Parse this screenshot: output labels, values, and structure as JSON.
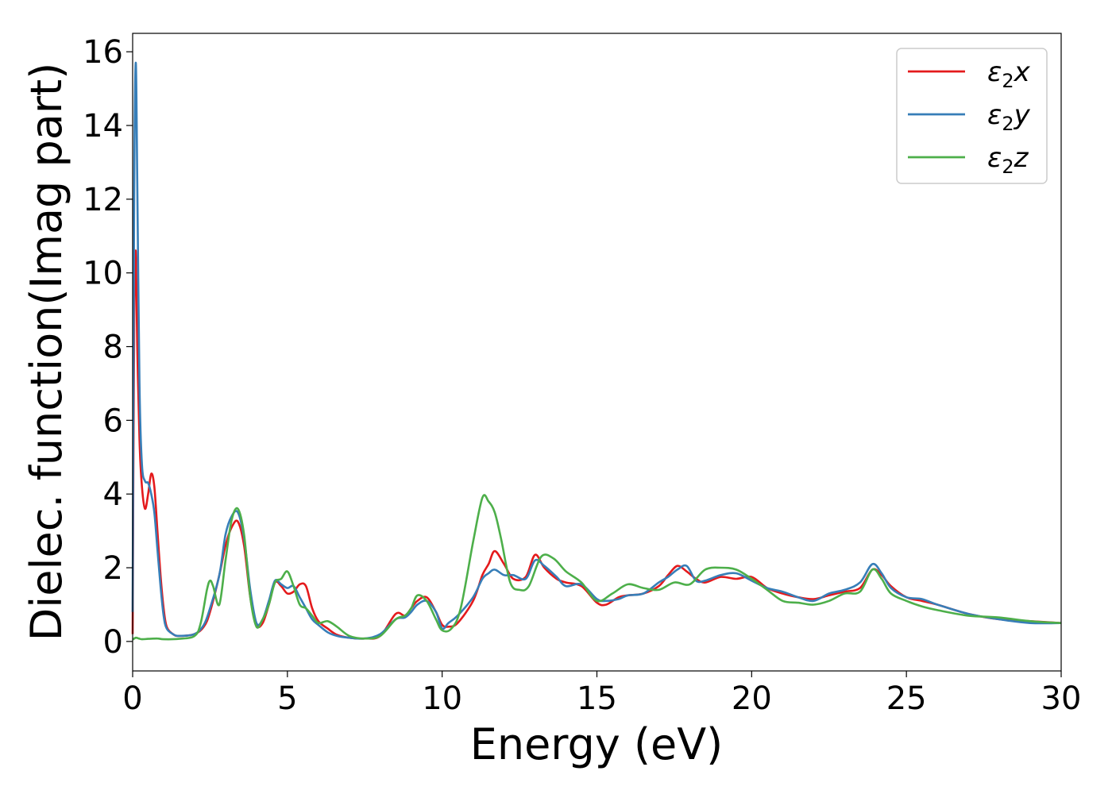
{
  "chart_data": {
    "type": "line",
    "title": "",
    "xlabel": "Energy (eV)",
    "ylabel": "Dielec. function(Imag part)",
    "xlim": [
      0,
      30
    ],
    "ylim": [
      -0.8,
      16.5
    ],
    "xticks": [
      0,
      5,
      10,
      15,
      20,
      25,
      30
    ],
    "yticks": [
      0,
      2,
      4,
      6,
      8,
      10,
      12,
      14,
      16
    ],
    "grid": false,
    "legend_position": "top-right",
    "series": [
      {
        "name": "ε2x",
        "legend_base": "ε",
        "legend_sub": "2",
        "legend_var": "x",
        "color": "#e41a1c",
        "x": [
          0,
          0.05,
          0.1,
          0.15,
          0.22,
          0.3,
          0.4,
          0.5,
          0.6,
          0.7,
          0.8,
          0.9,
          1.0,
          1.1,
          1.3,
          1.5,
          2.0,
          2.3,
          2.5,
          2.8,
          3.0,
          3.2,
          3.4,
          3.6,
          3.8,
          4.0,
          4.2,
          4.4,
          4.6,
          4.8,
          5.0,
          5.2,
          5.4,
          5.6,
          5.8,
          6.0,
          6.3,
          6.6,
          7.0,
          7.5,
          8.0,
          8.5,
          8.8,
          9.0,
          9.2,
          9.5,
          9.8,
          10.0,
          10.2,
          10.5,
          11.0,
          11.3,
          11.5,
          11.7,
          12.0,
          12.3,
          12.7,
          13.0,
          13.3,
          13.7,
          14.0,
          14.5,
          15.0,
          15.3,
          15.7,
          16.0,
          16.5,
          17.0,
          17.3,
          17.6,
          17.9,
          18.2,
          18.5,
          19.0,
          19.5,
          20.0,
          20.5,
          21.0,
          21.5,
          22.0,
          22.5,
          23.0,
          23.5,
          23.9,
          24.2,
          24.5,
          25.0,
          25.5,
          26.0,
          27.0,
          28.0,
          29.0,
          30.0
        ],
        "y": [
          0.2,
          8.5,
          10.6,
          8.0,
          5.5,
          4.2,
          3.6,
          4.0,
          4.55,
          4.2,
          3.0,
          1.8,
          0.9,
          0.4,
          0.2,
          0.15,
          0.2,
          0.4,
          0.8,
          1.8,
          2.6,
          3.1,
          3.25,
          2.6,
          1.2,
          0.45,
          0.5,
          1.0,
          1.6,
          1.5,
          1.3,
          1.35,
          1.55,
          1.5,
          0.9,
          0.55,
          0.35,
          0.18,
          0.1,
          0.08,
          0.15,
          0.75,
          0.7,
          0.9,
          1.1,
          1.2,
          0.8,
          0.45,
          0.4,
          0.5,
          1.1,
          1.8,
          2.1,
          2.45,
          2.1,
          1.7,
          1.75,
          2.35,
          2.0,
          1.7,
          1.6,
          1.5,
          1.05,
          1.0,
          1.2,
          1.25,
          1.3,
          1.5,
          1.8,
          2.05,
          1.9,
          1.7,
          1.6,
          1.75,
          1.7,
          1.75,
          1.45,
          1.3,
          1.2,
          1.15,
          1.25,
          1.35,
          1.45,
          1.95,
          1.8,
          1.5,
          1.2,
          1.1,
          1.0,
          0.75,
          0.6,
          0.55,
          0.5
        ]
      },
      {
        "name": "ε2y",
        "legend_base": "ε",
        "legend_sub": "2",
        "legend_var": "y",
        "color": "#377eb8",
        "x": [
          0,
          0.05,
          0.1,
          0.15,
          0.22,
          0.3,
          0.4,
          0.5,
          0.6,
          0.7,
          0.8,
          0.9,
          1.0,
          1.1,
          1.3,
          1.5,
          2.0,
          2.3,
          2.5,
          2.8,
          3.0,
          3.2,
          3.4,
          3.6,
          3.8,
          4.0,
          4.2,
          4.4,
          4.6,
          4.8,
          5.0,
          5.2,
          5.4,
          5.6,
          5.8,
          6.0,
          6.3,
          6.6,
          7.0,
          7.5,
          8.0,
          8.5,
          8.8,
          9.0,
          9.2,
          9.5,
          9.8,
          10.0,
          10.2,
          10.5,
          11.0,
          11.3,
          11.5,
          11.7,
          12.0,
          12.3,
          12.7,
          13.0,
          13.3,
          13.7,
          14.0,
          14.5,
          15.0,
          15.3,
          15.7,
          16.0,
          16.5,
          17.0,
          17.3,
          17.6,
          17.9,
          18.2,
          18.5,
          19.0,
          19.5,
          20.0,
          20.5,
          21.0,
          21.5,
          22.0,
          22.5,
          23.0,
          23.5,
          23.9,
          24.2,
          24.5,
          25.0,
          25.5,
          26.0,
          27.0,
          28.0,
          29.0,
          30.0
        ],
        "y": [
          0.8,
          12.0,
          15.7,
          12.5,
          7.0,
          4.8,
          4.35,
          4.3,
          4.0,
          3.5,
          2.5,
          1.5,
          0.7,
          0.35,
          0.2,
          0.15,
          0.2,
          0.45,
          0.9,
          1.8,
          2.9,
          3.4,
          3.5,
          2.8,
          1.4,
          0.5,
          0.6,
          1.1,
          1.65,
          1.55,
          1.45,
          1.5,
          1.2,
          0.9,
          0.6,
          0.45,
          0.25,
          0.15,
          0.1,
          0.08,
          0.2,
          0.6,
          0.65,
          0.8,
          1.0,
          1.1,
          0.8,
          0.35,
          0.5,
          0.7,
          1.2,
          1.7,
          1.85,
          1.95,
          1.8,
          1.8,
          1.7,
          2.2,
          2.05,
          1.75,
          1.5,
          1.55,
          1.15,
          1.1,
          1.15,
          1.25,
          1.3,
          1.6,
          1.75,
          1.95,
          2.05,
          1.65,
          1.65,
          1.8,
          1.85,
          1.65,
          1.45,
          1.35,
          1.2,
          1.1,
          1.3,
          1.4,
          1.6,
          2.1,
          1.85,
          1.45,
          1.2,
          1.15,
          1.0,
          0.75,
          0.6,
          0.5,
          0.5
        ]
      },
      {
        "name": "ε2z",
        "legend_base": "ε",
        "legend_sub": "2",
        "legend_var": "z",
        "color": "#4daf4a",
        "x": [
          0,
          0.1,
          0.2,
          0.3,
          0.5,
          0.8,
          1.0,
          1.5,
          2.0,
          2.2,
          2.4,
          2.5,
          2.6,
          2.8,
          3.0,
          3.2,
          3.4,
          3.6,
          3.8,
          4.0,
          4.2,
          4.4,
          4.6,
          4.8,
          5.0,
          5.2,
          5.4,
          5.6,
          5.8,
          6.0,
          6.3,
          6.6,
          7.0,
          7.5,
          8.0,
          8.5,
          8.8,
          9.0,
          9.2,
          9.5,
          9.8,
          10.0,
          10.3,
          10.6,
          11.0,
          11.3,
          11.5,
          11.7,
          11.9,
          12.2,
          12.5,
          12.8,
          13.2,
          13.6,
          14.0,
          14.5,
          15.0,
          15.5,
          16.0,
          16.5,
          17.0,
          17.5,
          18.0,
          18.5,
          19.0,
          19.5,
          20.0,
          20.5,
          21.0,
          21.5,
          22.0,
          22.5,
          23.0,
          23.5,
          23.9,
          24.2,
          24.5,
          25.0,
          25.5,
          26.0,
          27.0,
          28.0,
          29.0,
          30.0
        ],
        "y": [
          0.05,
          0.1,
          0.08,
          0.06,
          0.07,
          0.08,
          0.06,
          0.07,
          0.15,
          0.5,
          1.4,
          1.65,
          1.5,
          1.0,
          2.2,
          3.3,
          3.6,
          2.9,
          1.2,
          0.4,
          0.6,
          1.0,
          1.6,
          1.7,
          1.9,
          1.5,
          1.0,
          0.9,
          0.7,
          0.5,
          0.55,
          0.4,
          0.15,
          0.08,
          0.15,
          0.6,
          0.7,
          0.9,
          1.25,
          1.1,
          0.6,
          0.3,
          0.35,
          0.9,
          2.7,
          3.9,
          3.8,
          3.5,
          2.8,
          1.6,
          1.4,
          1.5,
          2.3,
          2.25,
          1.9,
          1.6,
          1.1,
          1.3,
          1.55,
          1.45,
          1.4,
          1.6,
          1.55,
          1.95,
          2.0,
          1.95,
          1.7,
          1.4,
          1.1,
          1.05,
          1.0,
          1.1,
          1.3,
          1.35,
          1.95,
          1.7,
          1.3,
          1.1,
          0.95,
          0.85,
          0.7,
          0.65,
          0.55,
          0.5
        ]
      }
    ]
  }
}
